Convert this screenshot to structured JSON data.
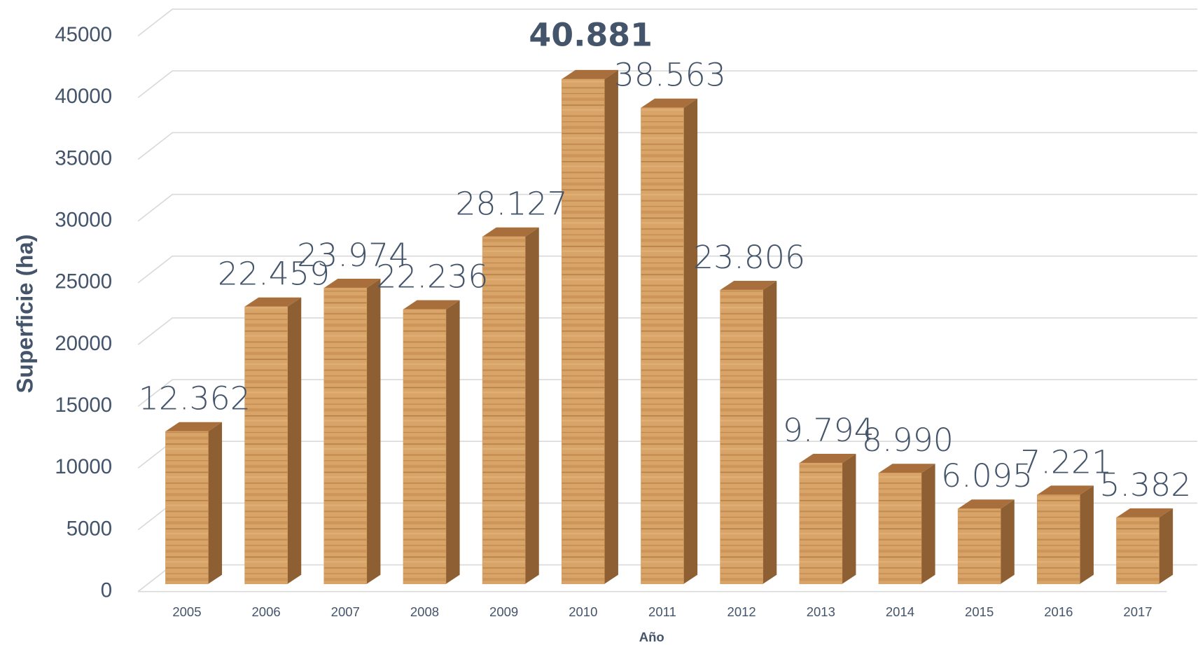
{
  "chart_data": {
    "type": "bar",
    "y_label": "Superficie (ha)",
    "x_label": "Año",
    "categories": [
      "2005",
      "2006",
      "2007",
      "2008",
      "2009",
      "2010",
      "2011",
      "2012",
      "2013",
      "2014",
      "2015",
      "2016",
      "2017"
    ],
    "values": [
      12362,
      22459,
      23974,
      22236,
      28127,
      40881,
      38563,
      23806,
      9794,
      8990,
      6095,
      7221,
      5382
    ],
    "value_labels": [
      "12.362",
      "22.459",
      "23.974",
      "22.236",
      "28.127",
      "40.881",
      "38.563",
      "23.806",
      "9.794",
      "8.990",
      "6.095",
      "7.221",
      "5.382"
    ],
    "color": "#d49a5e",
    "ylim": [
      0,
      45000
    ],
    "yticks": [
      0,
      5000,
      10000,
      15000,
      20000,
      25000,
      30000,
      35000,
      40000,
      45000
    ],
    "grid": true
  }
}
